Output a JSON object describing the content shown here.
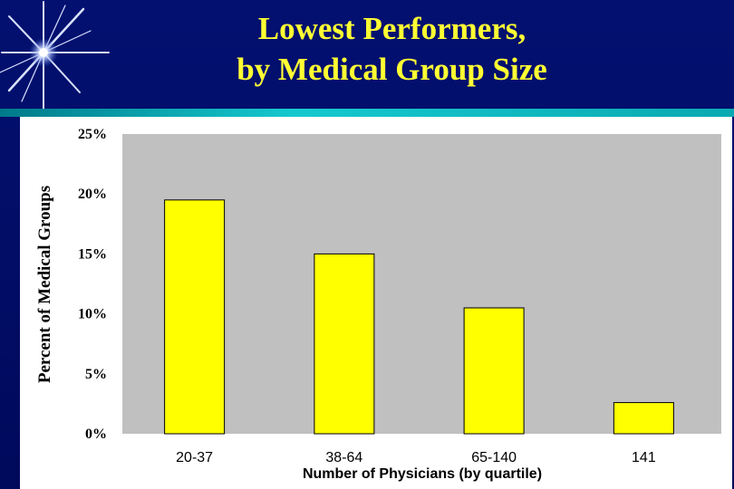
{
  "title": {
    "line1": "Lowest Performers,",
    "line2": "by Medical Group Size"
  },
  "colors": {
    "background": "#020c68",
    "title_text": "#ffff33",
    "bar_fill": "#ffff00",
    "plot_area": "#c0c0c0",
    "accent_rule": "#16c9cf"
  },
  "chart_data": {
    "type": "bar",
    "categories": [
      "20-37",
      "38-64",
      "65-140",
      "141"
    ],
    "values": [
      19.5,
      15,
      10.5,
      2.6
    ],
    "ylabel": "Percent of Medical Groups",
    "xlabel": "Number of Physicians (by quartile)",
    "ylim": [
      0,
      25
    ],
    "yticks": [
      0,
      5,
      10,
      15,
      20,
      25
    ],
    "ytick_labels": [
      "0%",
      "5%",
      "10%",
      "15%",
      "20%",
      "25%"
    ],
    "grid": false,
    "legend": "none"
  }
}
